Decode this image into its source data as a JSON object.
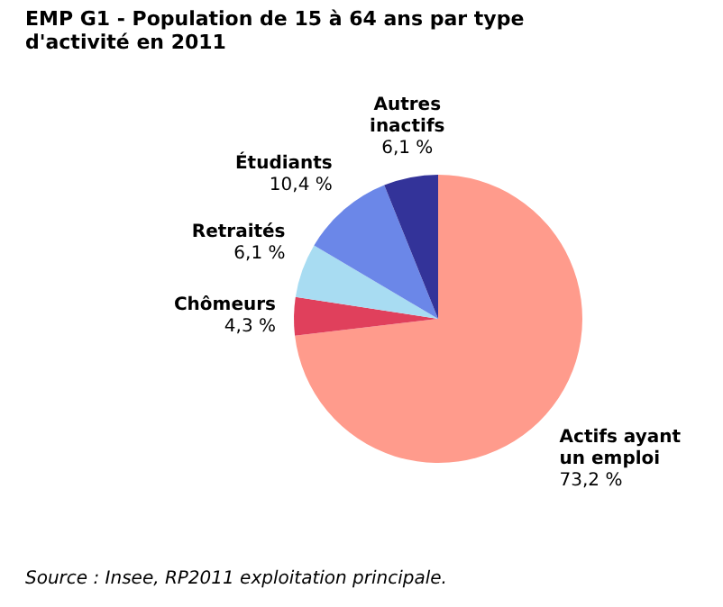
{
  "chart_data": {
    "type": "pie",
    "title": "EMP G1 - Population de 15 à 64 ans par type d'activité en 2011",
    "categories": [
      "Actifs ayant un emploi",
      "Chômeurs",
      "Retraités",
      "Étudiants",
      "Autres inactifs"
    ],
    "values": [
      73.2,
      4.3,
      6.1,
      10.4,
      6.1
    ],
    "value_labels": [
      "73,2 %",
      "4,3 %",
      "6,1 %",
      "10,4 %",
      "6,1 %"
    ],
    "colors": [
      "#ff9b8c",
      "#e0405c",
      "#a8dcf2",
      "#6b87e8",
      "#333399"
    ],
    "legend": false,
    "annotations": [
      "Source : Insee, RP2011 exploitation principale."
    ]
  }
}
